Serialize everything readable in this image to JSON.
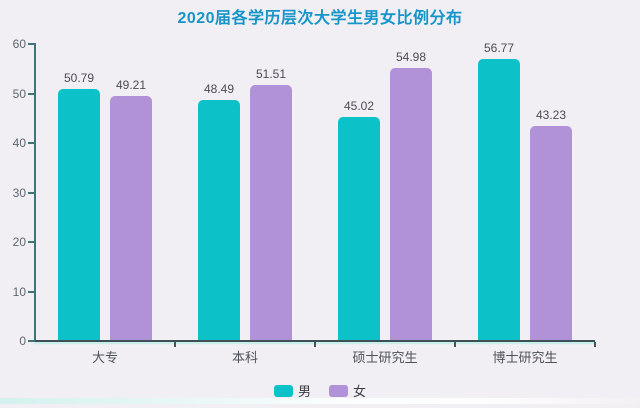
{
  "title": "2020届各学历层次大学生男女比例分布",
  "chart_data": {
    "type": "bar",
    "title": "2020届各学历层次大学生男女比例分布",
    "categories": [
      "大专",
      "本科",
      "硕士研究生",
      "博士研究生"
    ],
    "series": [
      {
        "name": "男",
        "color": "#0cc2c8",
        "values": [
          50.79,
          48.49,
          45.02,
          56.77
        ]
      },
      {
        "name": "女",
        "color": "#b192d8",
        "values": [
          49.21,
          51.51,
          54.98,
          43.23
        ]
      }
    ],
    "xlabel": "",
    "ylabel": "",
    "ylim": [
      0,
      60
    ],
    "yticks": [
      60,
      50,
      40,
      30,
      20,
      10,
      0
    ],
    "grid": false,
    "value_labels": true,
    "legend_position": "bottom"
  },
  "colors": {
    "background": "#f2eff4",
    "title": "#1695c9",
    "male_bar": "#0cc2c8",
    "female_bar": "#b192d8",
    "y_axis": "#41747a",
    "x_axis": "#3e4f56",
    "tick_label": "#5d666e",
    "value_label": "#4a4c55",
    "category_label": "#4e535b"
  }
}
